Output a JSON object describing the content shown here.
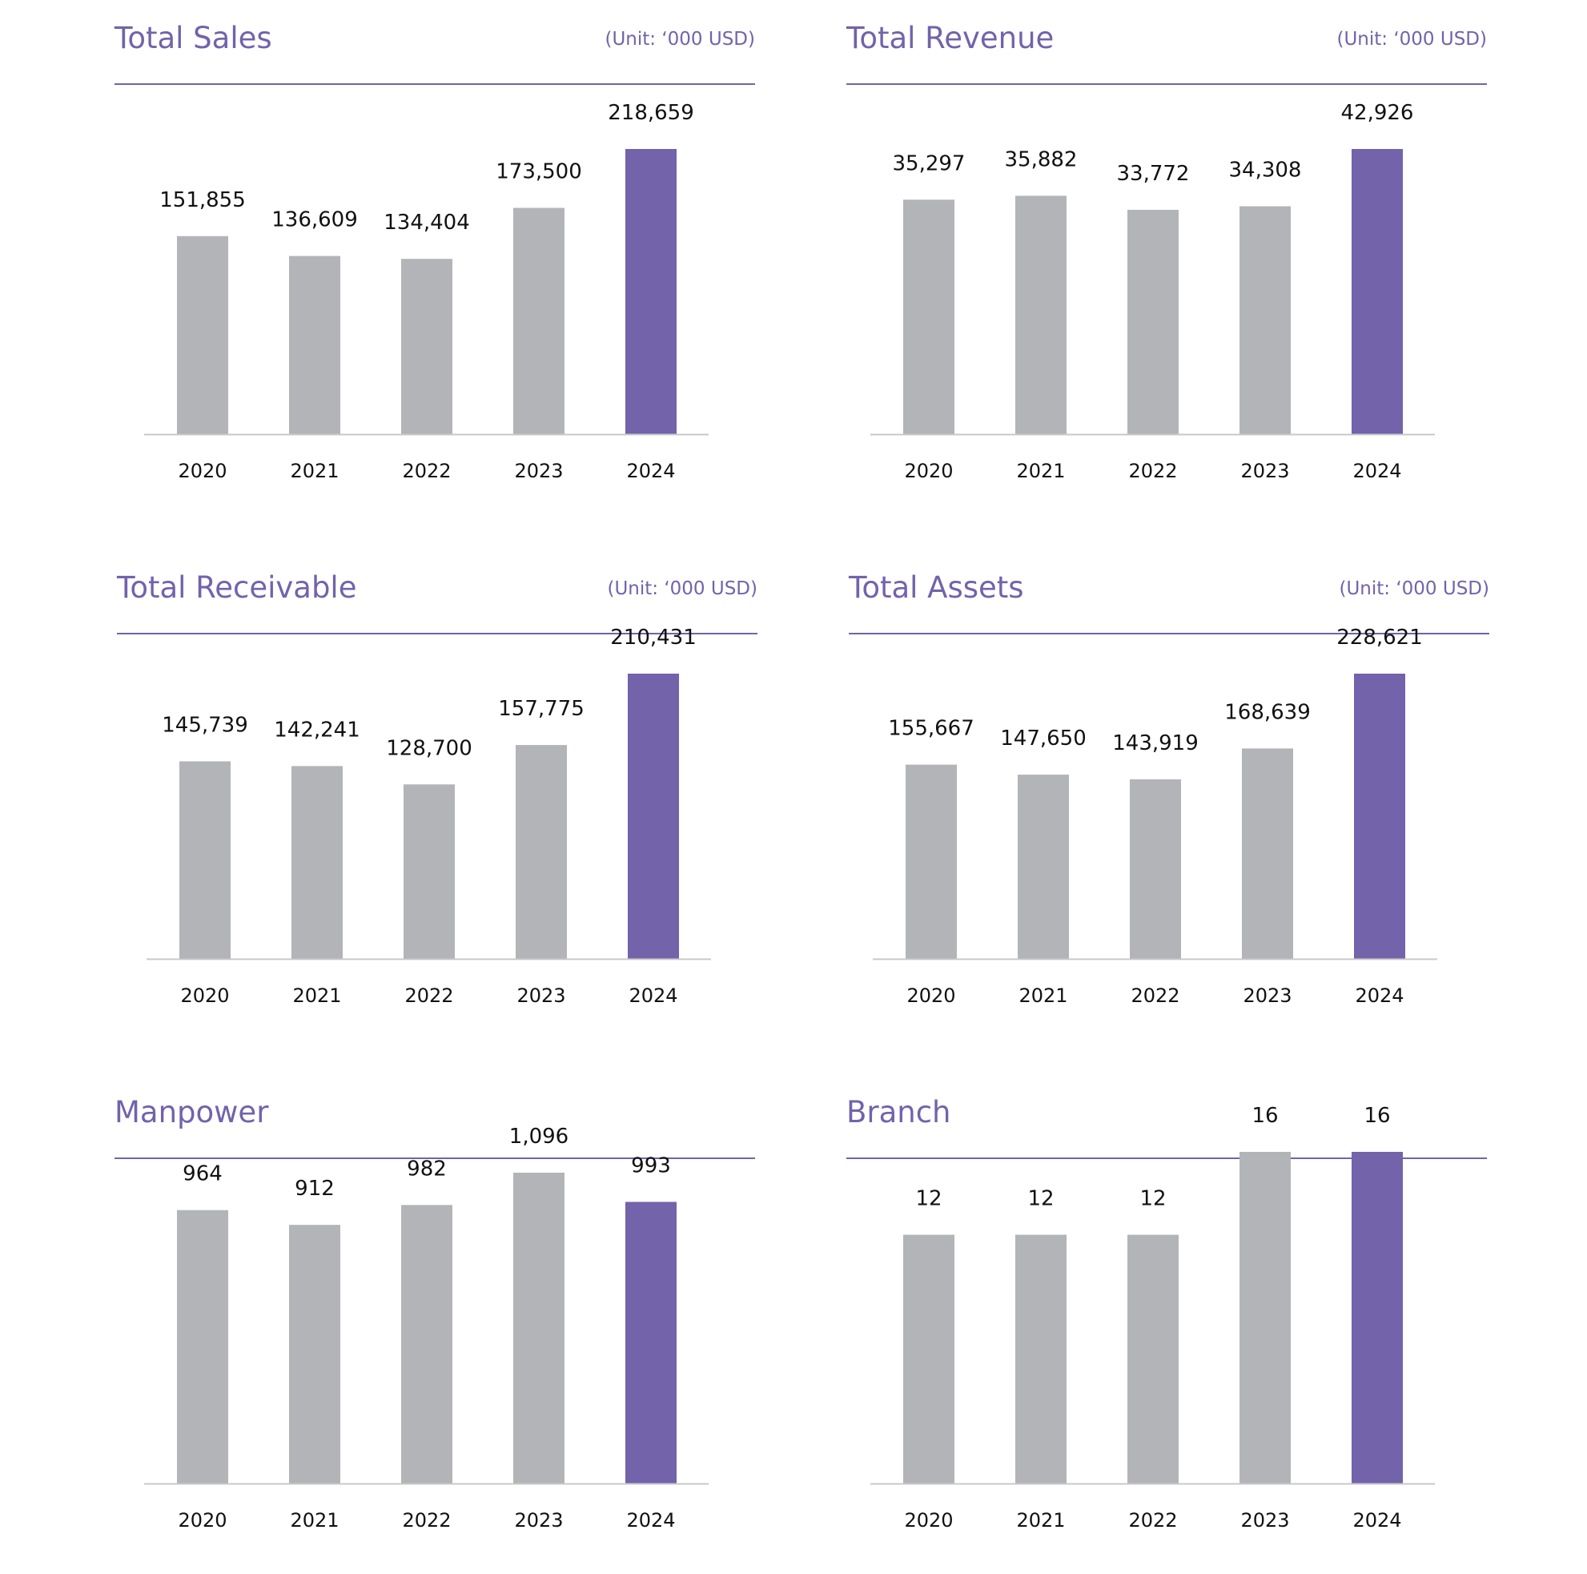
{
  "colors": {
    "accent": "#7263AB",
    "bar": "#B3B4B7",
    "axis": "#C8C8CA",
    "text": "#111111"
  },
  "chart_data": [
    {
      "type": "bar",
      "title": "Total Sales",
      "unit": "(Unit: ‘000 USD)",
      "categories": [
        "2020",
        "2021",
        "2022",
        "2023",
        "2024"
      ],
      "values": [
        151855,
        136609,
        134404,
        173500,
        218659
      ],
      "labels": [
        "151,855",
        "136,609",
        "134,404",
        "173,500",
        "218,659"
      ],
      "highlight_index": 4,
      "ylim": [
        0,
        250000
      ],
      "grid": false
    },
    {
      "type": "bar",
      "title": "Total Revenue",
      "unit": "(Unit: ‘000 USD)",
      "categories": [
        "2020",
        "2021",
        "2022",
        "2023",
        "2024"
      ],
      "values": [
        35297,
        35882,
        33772,
        34308,
        42926
      ],
      "labels": [
        "35,297",
        "35,882",
        "33,772",
        "34,308",
        "42,926"
      ],
      "highlight_index": 4,
      "ylim": [
        0,
        55000
      ],
      "grid": false
    },
    {
      "type": "bar",
      "title": "Total Receivable",
      "unit": "(Unit: ‘000 USD)",
      "categories": [
        "2020",
        "2021",
        "2022",
        "2023",
        "2024"
      ],
      "values": [
        145739,
        142241,
        128700,
        157775,
        210431
      ],
      "labels": [
        "145,739",
        "142,241",
        "128,700",
        "157,775",
        "210,431"
      ],
      "highlight_index": 4,
      "ylim": [
        0,
        255000
      ],
      "grid": false
    },
    {
      "type": "bar",
      "title": "Total Assets",
      "unit": "(Unit: ‘000 USD)",
      "categories": [
        "2020",
        "2021",
        "2022",
        "2023",
        "2024"
      ],
      "values": [
        155667,
        147650,
        143919,
        168639,
        228621
      ],
      "labels": [
        "155,667",
        "147,650",
        "143,919",
        "168,639",
        "228,621"
      ],
      "highlight_index": 4,
      "ylim": [
        0,
        265000
      ],
      "grid": false
    },
    {
      "type": "bar",
      "title": "Manpower",
      "unit": "",
      "categories": [
        "2020",
        "2021",
        "2022",
        "2023",
        "2024"
      ],
      "values": [
        964,
        912,
        982,
        1096,
        993
      ],
      "labels": [
        "964",
        "912",
        "982",
        "1,096",
        "993"
      ],
      "highlight_index": 4,
      "ylim": [
        0,
        1200
      ],
      "grid": false
    },
    {
      "type": "bar",
      "title": "Branch",
      "unit": "",
      "categories": [
        "2020",
        "2021",
        "2022",
        "2023",
        "2024"
      ],
      "values": [
        12,
        12,
        12,
        16,
        16
      ],
      "labels": [
        "12",
        "12",
        "12",
        "16",
        "16"
      ],
      "highlight_index": 4,
      "ylim": [
        0,
        18
      ],
      "grid": false
    }
  ]
}
